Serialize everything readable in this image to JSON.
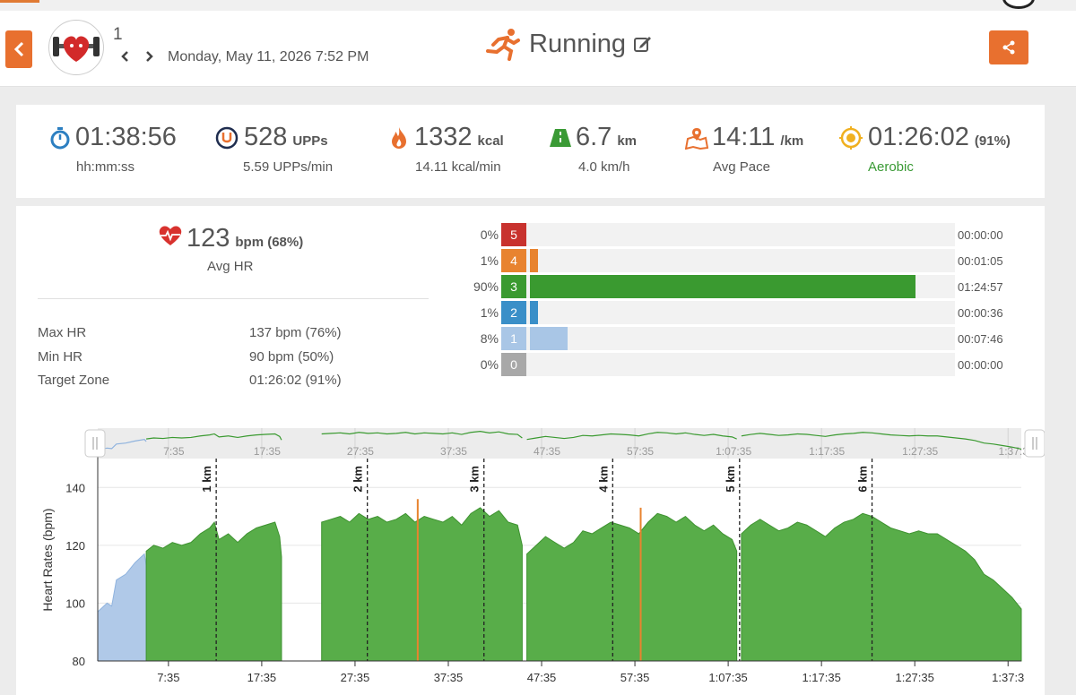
{
  "header": {
    "user_number": "1",
    "date": "Monday, May 11, 2026 7:52 PM",
    "activity_title": "Running"
  },
  "stats": [
    {
      "name": "duration",
      "icon": "stopwatch-icon",
      "value": "01:38:56",
      "unit": "",
      "sub": "hh:mm:ss",
      "color": "#2d7fc1"
    },
    {
      "name": "upps",
      "icon": "upp-icon",
      "value": "528",
      "unit": "UPPs",
      "sub": "5.59  UPPs/min",
      "color": "#1f2d4f"
    },
    {
      "name": "calories",
      "icon": "flame-icon",
      "value": "1332",
      "unit": "kcal",
      "sub": "14.11  kcal/min",
      "color": "#e8702f"
    },
    {
      "name": "distance",
      "icon": "road-icon",
      "value": "6.7",
      "unit": "km",
      "sub": "4.0  km/h",
      "color": "#3a9a35"
    },
    {
      "name": "pace",
      "icon": "map-icon",
      "value": "14:11",
      "unit": "/km",
      "sub": "Avg Pace",
      "color": "#e8702f"
    },
    {
      "name": "target",
      "icon": "target-icon",
      "value": "01:26:02",
      "unit": "(91%)",
      "sub": "Aerobic",
      "color": "#f0b020",
      "sub_color": "#3a9a35"
    }
  ],
  "heart_rate": {
    "avg_value": "123",
    "avg_unit": "bpm (68%)",
    "avg_label": "Avg HR",
    "rows": [
      {
        "label": "Max HR",
        "value": "137 bpm (76%)"
      },
      {
        "label": "Min HR",
        "value": "90 bpm (50%)"
      },
      {
        "label": "Target Zone",
        "value": "01:26:02 (91%)"
      }
    ]
  },
  "zones": [
    {
      "zone": "5",
      "pct": "0%",
      "fraction": 0.0,
      "time": "00:00:00",
      "color": "#c8322e"
    },
    {
      "zone": "4",
      "pct": "1%",
      "fraction": 0.011,
      "time": "00:01:05",
      "color": "#e8832f"
    },
    {
      "zone": "3",
      "pct": "90%",
      "fraction": 0.9,
      "time": "01:24:57",
      "color": "#3a9a30"
    },
    {
      "zone": "2",
      "pct": "1%",
      "fraction": 0.011,
      "time": "00:00:36",
      "color": "#3a8fc8"
    },
    {
      "zone": "1",
      "pct": "8%",
      "fraction": 0.08,
      "time": "00:07:46",
      "color": "#a9c6e6"
    },
    {
      "zone": "0",
      "pct": "0%",
      "fraction": 0.0,
      "time": "00:00:00",
      "color": "#a8a8a8"
    }
  ],
  "chart_data": {
    "type": "area",
    "ylabel": "Heart Rates (bpm)",
    "ylim": [
      80,
      150
    ],
    "y_ticks": [
      80,
      100,
      120,
      140
    ],
    "x_unit": "minutes",
    "xlim": [
      0,
      99
    ],
    "x_ticks": [
      {
        "value": 7.58,
        "label": "7:35"
      },
      {
        "value": 17.58,
        "label": "17:35"
      },
      {
        "value": 27.58,
        "label": "27:35"
      },
      {
        "value": 37.58,
        "label": "37:35"
      },
      {
        "value": 47.58,
        "label": "47:35"
      },
      {
        "value": 57.58,
        "label": "57:35"
      },
      {
        "value": 67.58,
        "label": "1:07:35"
      },
      {
        "value": 77.58,
        "label": "1:17:35"
      },
      {
        "value": 87.58,
        "label": "1:27:35"
      },
      {
        "value": 97.58,
        "label": "1:37:3"
      }
    ],
    "km_markers": [
      {
        "value": 12.7,
        "label": "1 km"
      },
      {
        "value": 28.9,
        "label": "2 km"
      },
      {
        "value": 41.4,
        "label": "3 km"
      },
      {
        "value": 55.2,
        "label": "4 km"
      },
      {
        "value": 68.8,
        "label": "5 km"
      },
      {
        "value": 83.0,
        "label": "6 km"
      }
    ],
    "segments": [
      {
        "zone": "1",
        "points": [
          [
            0,
            97
          ],
          [
            1,
            100
          ],
          [
            1.5,
            99
          ],
          [
            2,
            108
          ],
          [
            3,
            110
          ],
          [
            4,
            114
          ],
          [
            5,
            117
          ],
          [
            5.2,
            113
          ]
        ]
      },
      {
        "zone": "3",
        "points": [
          [
            5.2,
            118
          ],
          [
            6,
            120
          ],
          [
            7,
            119
          ],
          [
            8,
            121
          ],
          [
            9,
            120
          ],
          [
            10,
            121
          ],
          [
            11,
            124
          ],
          [
            12,
            126
          ],
          [
            12.5,
            128
          ],
          [
            13,
            122
          ],
          [
            14,
            124
          ],
          [
            15,
            121
          ],
          [
            16,
            124
          ],
          [
            17,
            126
          ],
          [
            18,
            127
          ],
          [
            19,
            128
          ],
          [
            19.5,
            123
          ],
          [
            19.7,
            116
          ]
        ]
      },
      {
        "zone": "3",
        "points": [
          [
            24,
            128
          ],
          [
            25,
            129
          ],
          [
            26,
            130
          ],
          [
            27,
            128
          ],
          [
            28,
            131
          ],
          [
            29,
            129
          ],
          [
            30,
            130
          ],
          [
            31,
            128
          ],
          [
            32,
            129
          ],
          [
            33,
            131
          ],
          [
            34,
            128
          ],
          [
            35,
            130
          ],
          [
            36,
            129
          ],
          [
            37,
            128
          ],
          [
            38,
            130
          ],
          [
            39,
            127
          ],
          [
            40,
            131
          ],
          [
            41,
            133
          ],
          [
            42,
            130
          ],
          [
            43,
            132
          ],
          [
            44,
            128
          ],
          [
            45,
            127
          ],
          [
            45.5,
            120
          ]
        ]
      },
      {
        "zone": "3",
        "points": [
          [
            46,
            117
          ],
          [
            47,
            120
          ],
          [
            48,
            123
          ],
          [
            49,
            121
          ],
          [
            50,
            119
          ],
          [
            51,
            121
          ],
          [
            52,
            125
          ],
          [
            53,
            124
          ],
          [
            54,
            126
          ],
          [
            55,
            128
          ],
          [
            56,
            127
          ],
          [
            57,
            126
          ],
          [
            58,
            124
          ],
          [
            59,
            128
          ],
          [
            60,
            131
          ],
          [
            61,
            130
          ],
          [
            62,
            128
          ],
          [
            63,
            130
          ],
          [
            64,
            127
          ],
          [
            65,
            125
          ],
          [
            66,
            127
          ],
          [
            67,
            124
          ],
          [
            68,
            122
          ],
          [
            68.5,
            118
          ]
        ]
      },
      {
        "zone": "3",
        "points": [
          [
            69,
            124
          ],
          [
            70,
            127
          ],
          [
            71,
            129
          ],
          [
            72,
            127
          ],
          [
            73,
            125
          ],
          [
            74,
            126
          ],
          [
            75,
            128
          ],
          [
            76,
            127
          ],
          [
            77,
            125
          ],
          [
            78,
            123
          ],
          [
            79,
            126
          ],
          [
            80,
            128
          ],
          [
            81,
            129
          ],
          [
            82,
            131
          ],
          [
            83,
            130
          ],
          [
            84,
            128
          ],
          [
            85,
            126
          ],
          [
            86,
            125
          ],
          [
            87,
            124
          ],
          [
            88,
            125
          ],
          [
            89,
            124
          ],
          [
            90,
            124
          ],
          [
            91,
            122
          ],
          [
            92,
            120
          ],
          [
            93,
            118
          ],
          [
            94,
            115
          ],
          [
            95,
            110
          ],
          [
            96,
            108
          ],
          [
            97,
            105
          ],
          [
            98,
            102
          ],
          [
            99,
            98
          ]
        ]
      }
    ],
    "spikes": [
      {
        "x": 34.3,
        "value": 136,
        "color": "#e8832f"
      },
      {
        "x": 58.2,
        "value": 133,
        "color": "#e8832f"
      }
    ]
  }
}
